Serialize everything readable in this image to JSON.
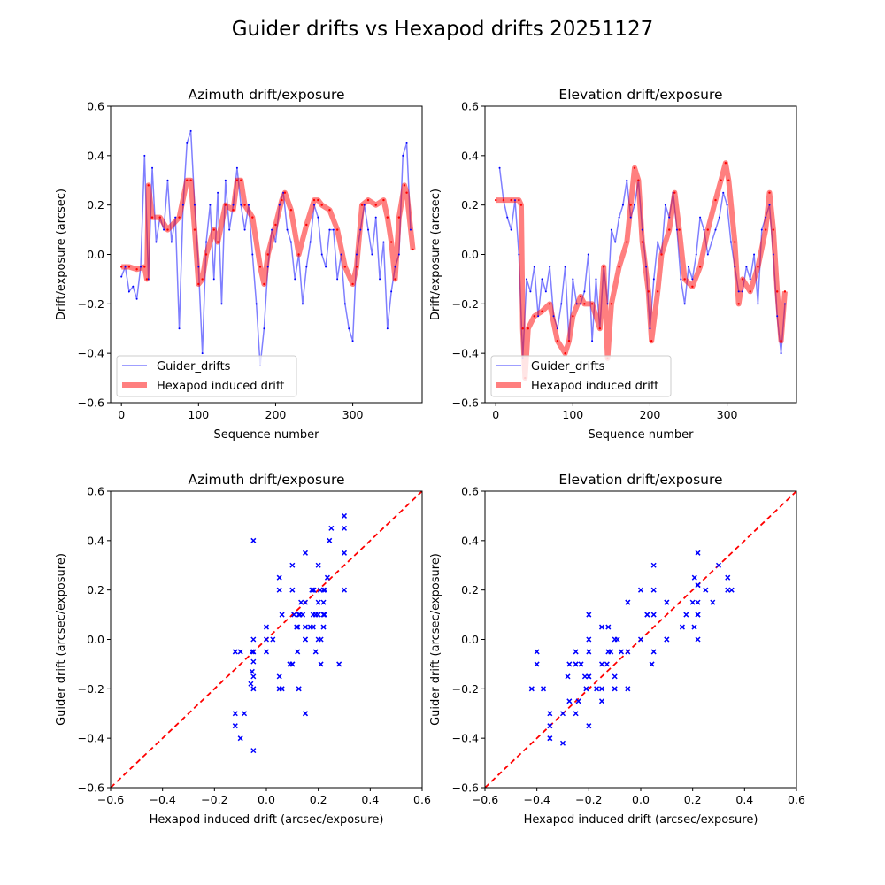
{
  "suptitle": "Guider drifts vs Hexapod drifts 20251127",
  "colors": {
    "guider": "#0000ff",
    "hexapod": "#ff0000",
    "reference": "#ff0000"
  },
  "chart_data": [
    {
      "type": "line",
      "title": "Azimuth drift/exposure",
      "xlabel": "Sequence number",
      "ylabel": "Drift/exposure (arcsec)",
      "xlim": [
        -14,
        390
      ],
      "ylim": [
        -0.6,
        0.6
      ],
      "xticks": [
        "0",
        "100",
        "200",
        "300"
      ],
      "yticks": [
        "0.6",
        "0.4",
        "0.2",
        "0.0",
        "−0.2",
        "−0.4",
        "−0.6"
      ],
      "legend": "lower-left",
      "grid": false,
      "series": [
        {
          "name": "Guider_drifts",
          "x": [
            0,
            5,
            10,
            15,
            20,
            25,
            30,
            35,
            40,
            45,
            50,
            55,
            60,
            65,
            70,
            75,
            80,
            85,
            90,
            95,
            100,
            105,
            110,
            115,
            120,
            125,
            130,
            135,
            140,
            145,
            150,
            155,
            160,
            165,
            170,
            175,
            180,
            185,
            190,
            195,
            200,
            205,
            210,
            215,
            220,
            225,
            230,
            235,
            240,
            245,
            250,
            255,
            260,
            265,
            270,
            275,
            280,
            285,
            290,
            295,
            300,
            305,
            310,
            315,
            320,
            325,
            330,
            335,
            340,
            345,
            350,
            355,
            360,
            365,
            370,
            375
          ],
          "y": [
            -0.09,
            -0.05,
            -0.15,
            -0.13,
            -0.18,
            -0.05,
            0.4,
            -0.1,
            0.35,
            0.05,
            0.15,
            0.1,
            0.3,
            0.05,
            0.15,
            -0.3,
            0.2,
            0.45,
            0.5,
            0.2,
            -0.05,
            -0.4,
            0.05,
            0.2,
            -0.1,
            0.25,
            -0.2,
            0.3,
            0.1,
            0.2,
            0.35,
            0.2,
            0.1,
            0.2,
            0.0,
            -0.2,
            -0.45,
            -0.3,
            -0.05,
            0.1,
            0.05,
            0.2,
            0.25,
            0.1,
            0.05,
            -0.1,
            0.0,
            -0.2,
            -0.05,
            0.05,
            0.2,
            0.15,
            0.0,
            -0.05,
            0.1,
            0.1,
            -0.1,
            0.0,
            -0.2,
            -0.3,
            -0.35,
            0.0,
            0.1,
            0.2,
            0.1,
            0.0,
            0.15,
            -0.1,
            0.05,
            -0.3,
            -0.15,
            -0.05,
            0.0,
            0.4,
            0.45,
            0.1
          ]
        },
        {
          "name": "Hexapod induced drift",
          "x": [
            0,
            10,
            20,
            30,
            33,
            35,
            40,
            50,
            60,
            75,
            85,
            90,
            95,
            100,
            105,
            110,
            120,
            125,
            135,
            145,
            150,
            155,
            160,
            170,
            180,
            185,
            190,
            200,
            208,
            212,
            220,
            230,
            240,
            250,
            255,
            260,
            270,
            280,
            290,
            300,
            305,
            312,
            320,
            330,
            340,
            345,
            350,
            355,
            360,
            367,
            370,
            378
          ],
          "y": [
            -0.05,
            -0.05,
            -0.06,
            -0.05,
            -0.1,
            0.28,
            0.15,
            0.15,
            0.1,
            0.15,
            0.3,
            0.3,
            0.1,
            -0.12,
            -0.1,
            0.0,
            0.1,
            0.05,
            0.2,
            0.18,
            0.3,
            0.3,
            0.2,
            0.15,
            -0.05,
            -0.12,
            0.0,
            0.12,
            0.22,
            0.25,
            0.18,
            0.0,
            0.12,
            0.22,
            0.22,
            0.2,
            0.18,
            0.1,
            -0.05,
            -0.12,
            -0.05,
            0.2,
            0.22,
            0.2,
            0.22,
            0.15,
            0.05,
            -0.1,
            0.15,
            0.28,
            0.25,
            0.02
          ]
        }
      ]
    },
    {
      "type": "line",
      "title": "Elevation drift/exposure",
      "xlabel": "Sequence number",
      "ylabel": "Drift/exposure (arcsec)",
      "xlim": [
        -14,
        390
      ],
      "ylim": [
        -0.6,
        0.6
      ],
      "xticks": [
        "0",
        "100",
        "200",
        "300"
      ],
      "yticks": [
        "0.6",
        "0.4",
        "0.2",
        "0.0",
        "−0.2",
        "−0.4",
        "−0.6"
      ],
      "legend": "lower-left",
      "grid": false,
      "series": [
        {
          "name": "Guider_drifts",
          "x": [
            5,
            10,
            15,
            20,
            25,
            30,
            35,
            40,
            45,
            50,
            55,
            60,
            65,
            70,
            75,
            80,
            85,
            90,
            95,
            100,
            105,
            110,
            115,
            120,
            125,
            130,
            135,
            140,
            145,
            150,
            155,
            160,
            165,
            170,
            175,
            180,
            185,
            190,
            195,
            200,
            205,
            210,
            215,
            220,
            225,
            230,
            235,
            240,
            245,
            250,
            255,
            260,
            265,
            270,
            275,
            280,
            285,
            290,
            295,
            300,
            305,
            310,
            315,
            320,
            325,
            330,
            335,
            340,
            345,
            350,
            355,
            360,
            365,
            370,
            375
          ],
          "y": [
            0.35,
            0.22,
            0.15,
            0.1,
            0.22,
            0.0,
            -0.42,
            -0.1,
            -0.15,
            -0.05,
            -0.25,
            -0.1,
            -0.15,
            -0.05,
            -0.25,
            -0.3,
            -0.2,
            -0.05,
            -0.35,
            -0.1,
            -0.2,
            -0.2,
            -0.15,
            0.0,
            -0.35,
            -0.1,
            -0.3,
            -0.05,
            -0.2,
            0.1,
            0.05,
            0.15,
            0.2,
            0.3,
            0.15,
            0.2,
            0.3,
            0.1,
            -0.05,
            -0.3,
            -0.1,
            0.05,
            0.0,
            0.2,
            0.15,
            0.25,
            0.1,
            -0.1,
            -0.2,
            -0.05,
            -0.1,
            0.0,
            0.15,
            0.1,
            0.0,
            0.05,
            0.1,
            0.15,
            0.25,
            0.2,
            0.05,
            -0.05,
            -0.15,
            -0.15,
            -0.05,
            -0.1,
            0.0,
            -0.2,
            0.1,
            0.15,
            0.2,
            0.0,
            -0.25,
            -0.4,
            -0.2
          ]
        },
        {
          "name": "Hexapod induced drift",
          "x": [
            0,
            10,
            20,
            30,
            33,
            35,
            38,
            42,
            50,
            60,
            70,
            80,
            90,
            95,
            100,
            110,
            115,
            125,
            135,
            140,
            145,
            150,
            160,
            170,
            175,
            180,
            185,
            190,
            198,
            202,
            210,
            215,
            225,
            232,
            238,
            245,
            255,
            265,
            275,
            285,
            292,
            298,
            302,
            310,
            315,
            320,
            330,
            340,
            350,
            355,
            360,
            365,
            370,
            375
          ],
          "y": [
            0.22,
            0.22,
            0.22,
            0.22,
            0.2,
            -0.3,
            -0.5,
            -0.3,
            -0.25,
            -0.23,
            -0.2,
            -0.35,
            -0.4,
            -0.35,
            -0.25,
            -0.17,
            -0.2,
            -0.2,
            -0.3,
            -0.05,
            -0.42,
            -0.2,
            -0.05,
            0.05,
            0.2,
            0.35,
            0.3,
            0.05,
            -0.15,
            -0.35,
            -0.15,
            0.0,
            0.1,
            0.25,
            0.1,
            -0.1,
            -0.13,
            -0.05,
            0.1,
            0.22,
            0.3,
            0.37,
            0.3,
            0.05,
            -0.2,
            -0.1,
            -0.15,
            -0.05,
            0.1,
            0.25,
            0.1,
            -0.15,
            -0.35,
            -0.15
          ]
        }
      ]
    },
    {
      "type": "scatter",
      "title": "Azimuth drift/exposure",
      "xlabel": "Hexapod induced drift (arcsec/exposure)",
      "ylabel": "Guider drift (arcsec/exposure)",
      "xlim": [
        -0.6,
        0.6
      ],
      "ylim": [
        -0.6,
        0.6
      ],
      "xticks": [
        "−0.6",
        "−0.4",
        "−0.2",
        "0.0",
        "0.2",
        "0.4",
        "0.6"
      ],
      "yticks": [
        "0.6",
        "0.4",
        "0.2",
        "0.0",
        "−0.2",
        "−0.4",
        "−0.6"
      ],
      "marker": "x",
      "reference_line": "y = x (dashed)",
      "grid": false
    },
    {
      "type": "scatter",
      "title": "Elevation drift/exposure",
      "xlabel": "Hexapod induced drift (arcsec/exposure)",
      "ylabel": "Guider drift (arcsec/exposure)",
      "xlim": [
        -0.6,
        0.6
      ],
      "ylim": [
        -0.6,
        0.6
      ],
      "xticks": [
        "−0.6",
        "−0.4",
        "−0.2",
        "0.0",
        "0.2",
        "0.4",
        "0.6"
      ],
      "yticks": [
        "0.6",
        "0.4",
        "0.2",
        "0.0",
        "−0.2",
        "−0.4",
        "−0.6"
      ],
      "marker": "x",
      "reference_line": "y = x (dashed)",
      "grid": false
    }
  ]
}
